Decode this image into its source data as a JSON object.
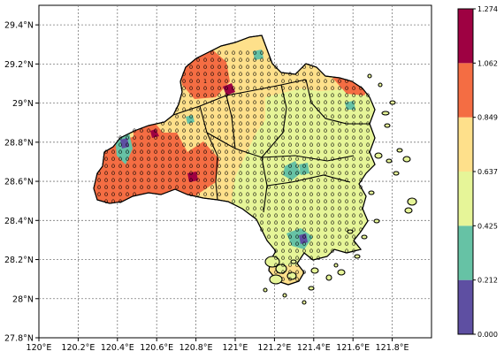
{
  "axes": {
    "lon_ticks": [
      "120°E",
      "120.2°E",
      "120.4°E",
      "120.6°E",
      "120.8°E",
      "121°E",
      "121.2°E",
      "121.4°E",
      "121.6°E",
      "121.8°E"
    ],
    "lat_ticks": [
      "29.4°N",
      "29.2°N",
      "29°N",
      "28.8°N",
      "28.6°N",
      "28.4°N",
      "28.2°N",
      "28°N",
      "27.8°N"
    ],
    "lon_range": [
      120.0,
      122.0
    ],
    "lat_range": [
      27.8,
      29.5
    ],
    "grid": true
  },
  "colorbar": {
    "levels": [
      "0.000",
      "0.212",
      "0.425",
      "0.637",
      "0.849",
      "1.062",
      "1.274"
    ],
    "colors": [
      "#5e4fa2",
      "#66c2a5",
      "#e6f598",
      "#fee08b",
      "#f46d43",
      "#9e0142"
    ]
  },
  "station_label": "0",
  "station_alt_label": "1",
  "colors": {
    "land_base": "#fee08b",
    "east_zone": "#e6f598",
    "hot": "#f46d43",
    "very_hot": "#9e0142",
    "low": "#66c2a5",
    "lowest": "#5e4fa2"
  }
}
